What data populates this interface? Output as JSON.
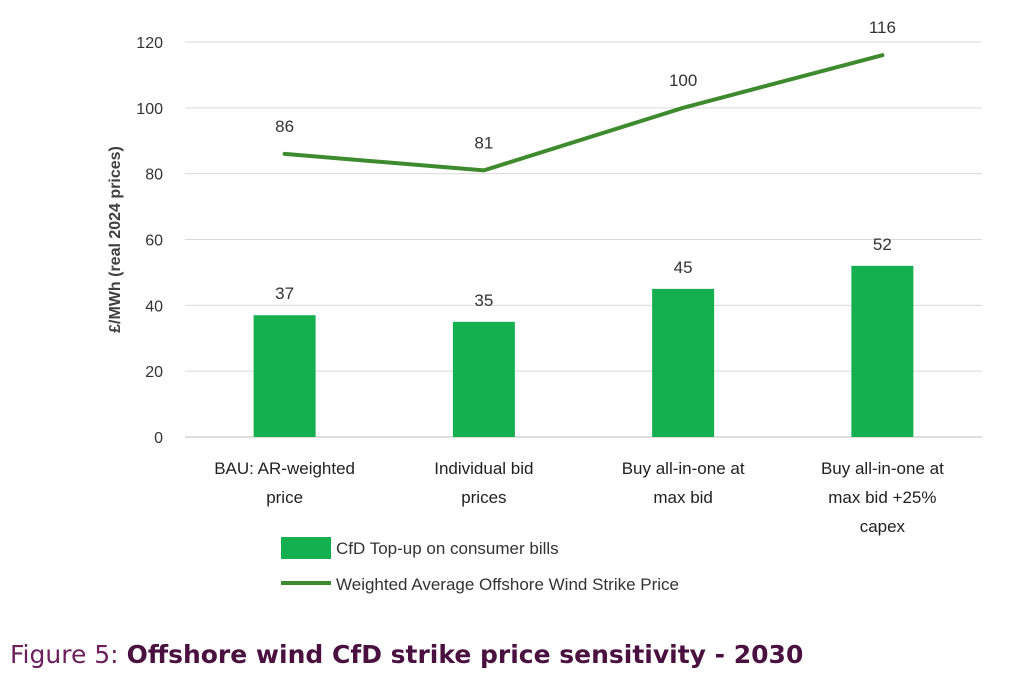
{
  "chart_data": {
    "type": "bar",
    "categories": [
      [
        "BAU: AR-weighted",
        "price"
      ],
      [
        "Individual bid",
        "prices"
      ],
      [
        "Buy all-in-one at",
        "max bid"
      ],
      [
        "Buy all-in-one at",
        "max bid +25%",
        "capex"
      ]
    ],
    "series": [
      {
        "name": "CfD Top-up on consumer bills",
        "type": "bar",
        "color": "#14b04f",
        "values": [
          37,
          35,
          45,
          52
        ]
      },
      {
        "name": "Weighted Average Offshore Wind Strike Price",
        "type": "line",
        "color": "#3e8a2e",
        "values": [
          86,
          81,
          100,
          116
        ]
      }
    ],
    "ylabel": "£/MWh (real 2024 prices)",
    "xlabel": "",
    "ylim": [
      0,
      120
    ],
    "yticks": [
      0,
      20,
      40,
      60,
      80,
      100,
      120
    ],
    "grid": true,
    "legend_position": "bottom"
  },
  "caption": {
    "prefix": "Figure 5:",
    "title": "Offshore wind CfD strike price sensitivity - 2030"
  }
}
